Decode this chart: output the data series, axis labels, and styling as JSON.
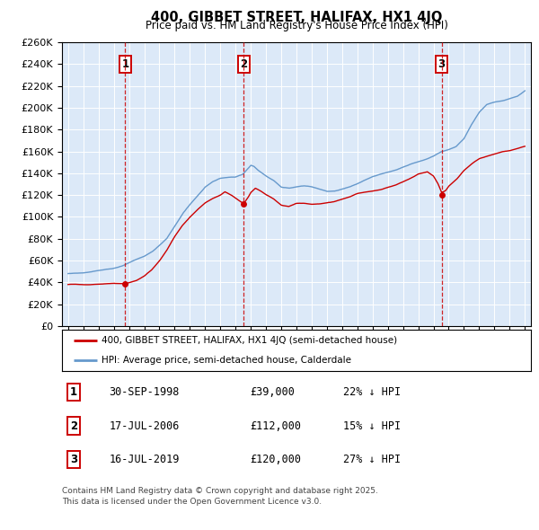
{
  "title": "400, GIBBET STREET, HALIFAX, HX1 4JQ",
  "subtitle": "Price paid vs. HM Land Registry's House Price Index (HPI)",
  "legend_line1": "400, GIBBET STREET, HALIFAX, HX1 4JQ (semi-detached house)",
  "legend_line2": "HPI: Average price, semi-detached house, Calderdale",
  "footer": "Contains HM Land Registry data © Crown copyright and database right 2025.\nThis data is licensed under the Open Government Licence v3.0.",
  "sales": [
    {
      "num": 1,
      "date": "30-SEP-1998",
      "price": 39000,
      "hpi_pct": "22% ↓ HPI"
    },
    {
      "num": 2,
      "date": "17-JUL-2006",
      "price": 112000,
      "hpi_pct": "15% ↓ HPI"
    },
    {
      "num": 3,
      "date": "16-JUL-2019",
      "price": 120000,
      "hpi_pct": "27% ↓ HPI"
    }
  ],
  "sale_years": [
    1998.75,
    2006.54,
    2019.54
  ],
  "sale_prices": [
    39000,
    112000,
    120000
  ],
  "ylim": [
    0,
    260000
  ],
  "yticks": [
    0,
    20000,
    40000,
    60000,
    80000,
    100000,
    120000,
    140000,
    160000,
    180000,
    200000,
    220000,
    240000,
    260000
  ],
  "xlim_left": 1994.6,
  "xlim_right": 2025.4,
  "plot_bg": "#dce9f8",
  "grid_color": "#ffffff",
  "red_color": "#cc0000",
  "blue_color": "#6699cc",
  "hpi_key_years": [
    1995,
    1995.5,
    1996,
    1996.5,
    1997,
    1997.5,
    1998,
    1998.5,
    1999,
    1999.5,
    2000,
    2000.5,
    2001,
    2001.5,
    2002,
    2002.5,
    2003,
    2003.5,
    2004,
    2004.5,
    2005,
    2005.5,
    2006,
    2006.5,
    2007,
    2007.2,
    2007.5,
    2008,
    2008.5,
    2009,
    2009.5,
    2010,
    2010.5,
    2011,
    2011.5,
    2012,
    2012.5,
    2013,
    2013.5,
    2014,
    2014.5,
    2015,
    2015.5,
    2016,
    2016.5,
    2017,
    2017.5,
    2018,
    2018.5,
    2019,
    2019.5,
    2020,
    2020.5,
    2021,
    2021.5,
    2022,
    2022.5,
    2023,
    2023.5,
    2024,
    2024.5,
    2025
  ],
  "hpi_key_values": [
    48000,
    48500,
    49000,
    50000,
    51000,
    52000,
    53000,
    55000,
    58000,
    61000,
    64000,
    68000,
    74000,
    81000,
    92000,
    103000,
    112000,
    120000,
    128000,
    133000,
    136000,
    137000,
    137000,
    140000,
    148000,
    147000,
    143000,
    138000,
    134000,
    128000,
    127000,
    128000,
    129000,
    128000,
    126000,
    124000,
    124000,
    126000,
    128000,
    131000,
    134000,
    137000,
    139000,
    141000,
    143000,
    146000,
    149000,
    151000,
    153000,
    156000,
    160000,
    162000,
    165000,
    172000,
    185000,
    196000,
    203000,
    205000,
    206000,
    208000,
    210000,
    215000
  ],
  "red_key_years": [
    1995,
    1995.5,
    1996,
    1996.5,
    1997,
    1997.5,
    1998,
    1998.5,
    1998.75,
    1999,
    1999.5,
    2000,
    2000.5,
    2001,
    2001.5,
    2002,
    2002.5,
    2003,
    2003.5,
    2004,
    2004.5,
    2005,
    2005.3,
    2005.7,
    2006,
    2006.3,
    2006.54,
    2006.8,
    2007,
    2007.3,
    2007.6,
    2008,
    2008.5,
    2009,
    2009.5,
    2010,
    2010.5,
    2011,
    2011.5,
    2012,
    2012.5,
    2013,
    2013.5,
    2014,
    2014.5,
    2015,
    2015.5,
    2016,
    2016.5,
    2017,
    2017.5,
    2018,
    2018.3,
    2018.6,
    2019,
    2019.3,
    2019.54,
    2019.8,
    2020,
    2020.5,
    2021,
    2021.5,
    2022,
    2022.5,
    2023,
    2023.5,
    2024,
    2024.5,
    2025
  ],
  "red_key_values": [
    38000,
    38200,
    37800,
    38000,
    38500,
    38800,
    39200,
    39000,
    39000,
    40000,
    42000,
    46000,
    52000,
    60000,
    70000,
    82000,
    92000,
    100000,
    107000,
    113000,
    117000,
    120000,
    123000,
    120000,
    117000,
    114000,
    112000,
    117000,
    122000,
    126000,
    124000,
    120000,
    116000,
    110000,
    109000,
    112000,
    112000,
    111000,
    111000,
    112000,
    113000,
    115000,
    117000,
    120000,
    121000,
    122000,
    123000,
    125000,
    127000,
    130000,
    133000,
    137000,
    138000,
    139000,
    135000,
    128000,
    120000,
    122000,
    126000,
    132000,
    140000,
    146000,
    151000,
    153000,
    155000,
    157000,
    158000,
    160000,
    162000
  ]
}
